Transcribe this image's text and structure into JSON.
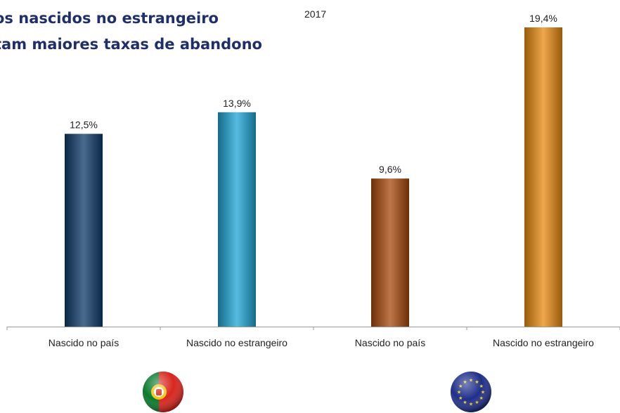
{
  "title": {
    "line1": "os nascidos no estrangeiro",
    "line2": "tam maiores taxas de abandono"
  },
  "year_label": "2017",
  "colors": {
    "title": "#1f2f6b",
    "pt_native": "#0e3a6a",
    "pt_foreign": "#1ea5d6",
    "eu_native": "#a8480a",
    "eu_foreign": "#ea8a10",
    "axis": "#9a9a9a"
  },
  "icons": [
    "portugal-flag-icon",
    "eu-flag-icon"
  ],
  "chart_data": {
    "type": "bar",
    "categories": [
      "Nascido no país",
      "Nascido no estrangeiro",
      "Nascido no país",
      "Nascido no estrangeiro"
    ],
    "values": [
      12.5,
      13.9,
      9.6,
      19.4
    ],
    "value_labels": [
      "12,5%",
      "13,9%",
      "9,6%",
      "19,4%"
    ],
    "groups": [
      "Portugal",
      "Portugal",
      "UE",
      "UE"
    ],
    "ylim": [
      0,
      19.4
    ],
    "grid": false
  }
}
